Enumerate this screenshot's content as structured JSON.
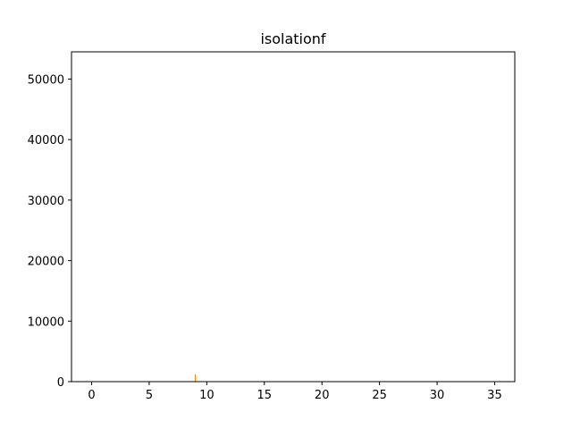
{
  "chart_data": {
    "type": "bar",
    "title": "isolationf",
    "xlabel": "",
    "ylabel": "",
    "xlim": [
      -1.75,
      36.75
    ],
    "ylim": [
      0,
      54500
    ],
    "xticks": [
      0,
      5,
      10,
      15,
      20,
      25,
      30,
      35
    ],
    "yticks": [
      0,
      10000,
      20000,
      30000,
      40000,
      50000
    ],
    "grid": false,
    "bars": [
      {
        "x": 9,
        "value": 1200,
        "color": "#ff7f0e"
      }
    ]
  }
}
